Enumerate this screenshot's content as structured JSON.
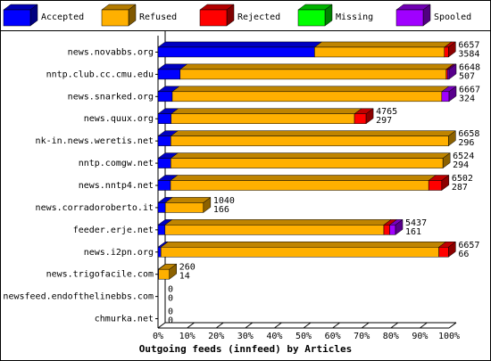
{
  "chart_data": {
    "type": "bar3d_stacked_h",
    "title": "Outgoing feeds (innfeed) by Articles",
    "categories": [
      "news.novabbs.org",
      "nntp.club.cc.cmu.edu",
      "news.snarked.org",
      "news.quux.org",
      "nk-in.news.weretis.net",
      "nntp.comgw.net",
      "news.nntp4.net",
      "news.corradoroberto.it",
      "feeder.erje.net",
      "news.i2pn.org",
      "news.trigofacile.com",
      "newsfeed.endofthelinebbs.com",
      "chmurka.net"
    ],
    "series": [
      {
        "name": "Accepted",
        "color": "#0000ff",
        "values": [
          53.8,
          7.6,
          4.9,
          4.5,
          4.4,
          4.4,
          4.3,
          2.5,
          2.4,
          1.0,
          0.2,
          0,
          0
        ]
      },
      {
        "name": "Refused",
        "color": "#ffb000",
        "values": [
          44.6,
          91.4,
          92.6,
          63,
          95.4,
          93.5,
          88.7,
          13.1,
          75.2,
          95.5,
          3.7,
          0,
          0
        ]
      },
      {
        "name": "Rejected",
        "color": "#ff0000",
        "values": [
          1.4,
          0.5,
          0,
          4,
          0,
          0,
          4.5,
          0,
          2,
          3.3,
          0,
          0,
          0
        ]
      },
      {
        "name": "Missing",
        "color": "#00ff00",
        "values": [
          0,
          0,
          0,
          0,
          0,
          0,
          0,
          0,
          0,
          0,
          0,
          0,
          0
        ]
      },
      {
        "name": "Spooled",
        "color": "#a000ff",
        "values": [
          0,
          0.5,
          2.5,
          0,
          0,
          0,
          0,
          0,
          2,
          0,
          0,
          0,
          0
        ]
      }
    ],
    "offered": [
      6657,
      6648,
      6667,
      4765,
      6658,
      6524,
      6502,
      1040,
      5437,
      6657,
      260,
      0,
      0
    ],
    "accepted": [
      3584,
      507,
      324,
      297,
      296,
      294,
      287,
      166,
      161,
      66,
      14,
      0,
      0
    ],
    "xlim": [
      0,
      100
    ],
    "xticks": [
      {
        "value": 0,
        "label": "0%"
      },
      {
        "value": 10,
        "label": "10%"
      },
      {
        "value": 20,
        "label": "20%"
      },
      {
        "value": 30,
        "label": "30%"
      },
      {
        "value": 40,
        "label": "40%"
      },
      {
        "value": 50,
        "label": "50%"
      },
      {
        "value": 60,
        "label": "60%"
      },
      {
        "value": 70,
        "label": "70%"
      },
      {
        "value": 80,
        "label": "80%"
      },
      {
        "value": 90,
        "label": "90%"
      },
      {
        "value": 100,
        "label": "100%"
      }
    ]
  }
}
